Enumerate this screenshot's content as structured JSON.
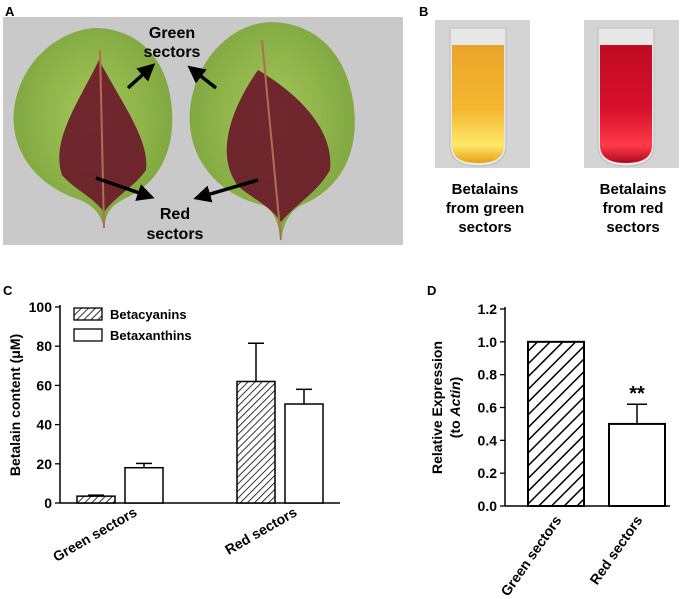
{
  "panels": {
    "a": {
      "letter": "A",
      "green_label_line1": "Green",
      "green_label_line2": "sectors",
      "red_label_line1": "Red",
      "red_label_line2": "sectors"
    },
    "b": {
      "letter": "B",
      "left_caption": [
        "Betalains",
        "from green",
        "sectors"
      ],
      "right_caption": [
        "Betalains",
        "from red",
        "sectors"
      ]
    },
    "c": {
      "letter": "C"
    },
    "d": {
      "letter": "D"
    }
  },
  "colors": {
    "leaf_green": "#8fb84a",
    "leaf_red": "#6b1a2a",
    "tube_yellow": "#f0a81c",
    "tube_red": "#d0102a"
  },
  "chart_data": [
    {
      "type": "bar",
      "panel": "C",
      "categories": [
        "Green sectors",
        "Red sectors"
      ],
      "series": [
        {
          "name": "Betacyanins",
          "values": [
            3.5,
            62
          ],
          "errors": [
            0.5,
            19.5
          ],
          "fill": "hatch"
        },
        {
          "name": "Betaxanthins",
          "values": [
            18,
            50.5
          ],
          "errors": [
            2.2,
            7.5
          ],
          "fill": "white"
        }
      ],
      "ylabel": "Betalain content (μM)",
      "ylim": [
        0,
        100
      ],
      "yticks": [
        0,
        20,
        40,
        60,
        80,
        100
      ],
      "legend": "top-left"
    },
    {
      "type": "bar",
      "panel": "D",
      "categories": [
        "Green sectors",
        "Red sectors"
      ],
      "values": [
        1.0,
        0.5
      ],
      "errors": [
        0.0,
        0.12
      ],
      "fills": [
        "hatch",
        "white"
      ],
      "ylabel_main": "Relative Expression",
      "ylabel_sub_prefix": "(to ",
      "ylabel_sub_italic": "Actin",
      "ylabel_sub_suffix": ")",
      "ylim": [
        0,
        1.2
      ],
      "yticks": [
        "0.0",
        "0.2",
        "0.4",
        "0.6",
        "0.8",
        "1.0",
        "1.2"
      ],
      "annotation": "**"
    }
  ]
}
